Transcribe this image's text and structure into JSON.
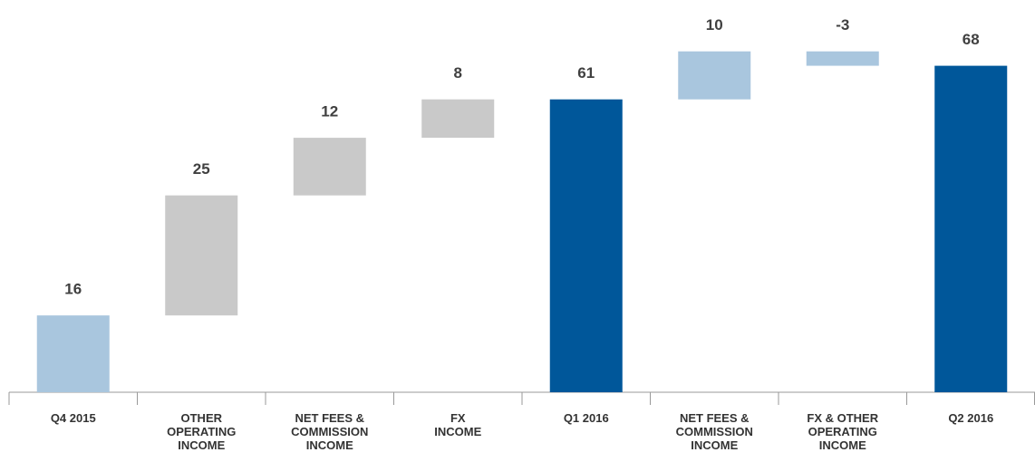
{
  "chart_data": {
    "type": "waterfall",
    "categories": [
      "Q4 2015",
      "OTHER\nOPERATING\nINCOME",
      "NET FEES &\nCOMMISSION\nINCOME",
      "FX\nINCOME",
      "Q1 2016",
      "NET FEES &\nCOMMISSION\nINCOME",
      "FX & OTHER\nOPERATING\nINCOME",
      "Q2 2016"
    ],
    "values": [
      16,
      25,
      12,
      8,
      61,
      10,
      -3,
      68
    ],
    "measure": [
      "absolute",
      "relative",
      "relative",
      "relative",
      "total",
      "relative",
      "relative",
      "total"
    ],
    "colors": [
      "#a9c6de",
      "#c9c9c9",
      "#c9c9c9",
      "#c9c9c9",
      "#00579a",
      "#a9c6de",
      "#a9c6de",
      "#00579a"
    ],
    "ylim": [
      0,
      80
    ]
  }
}
